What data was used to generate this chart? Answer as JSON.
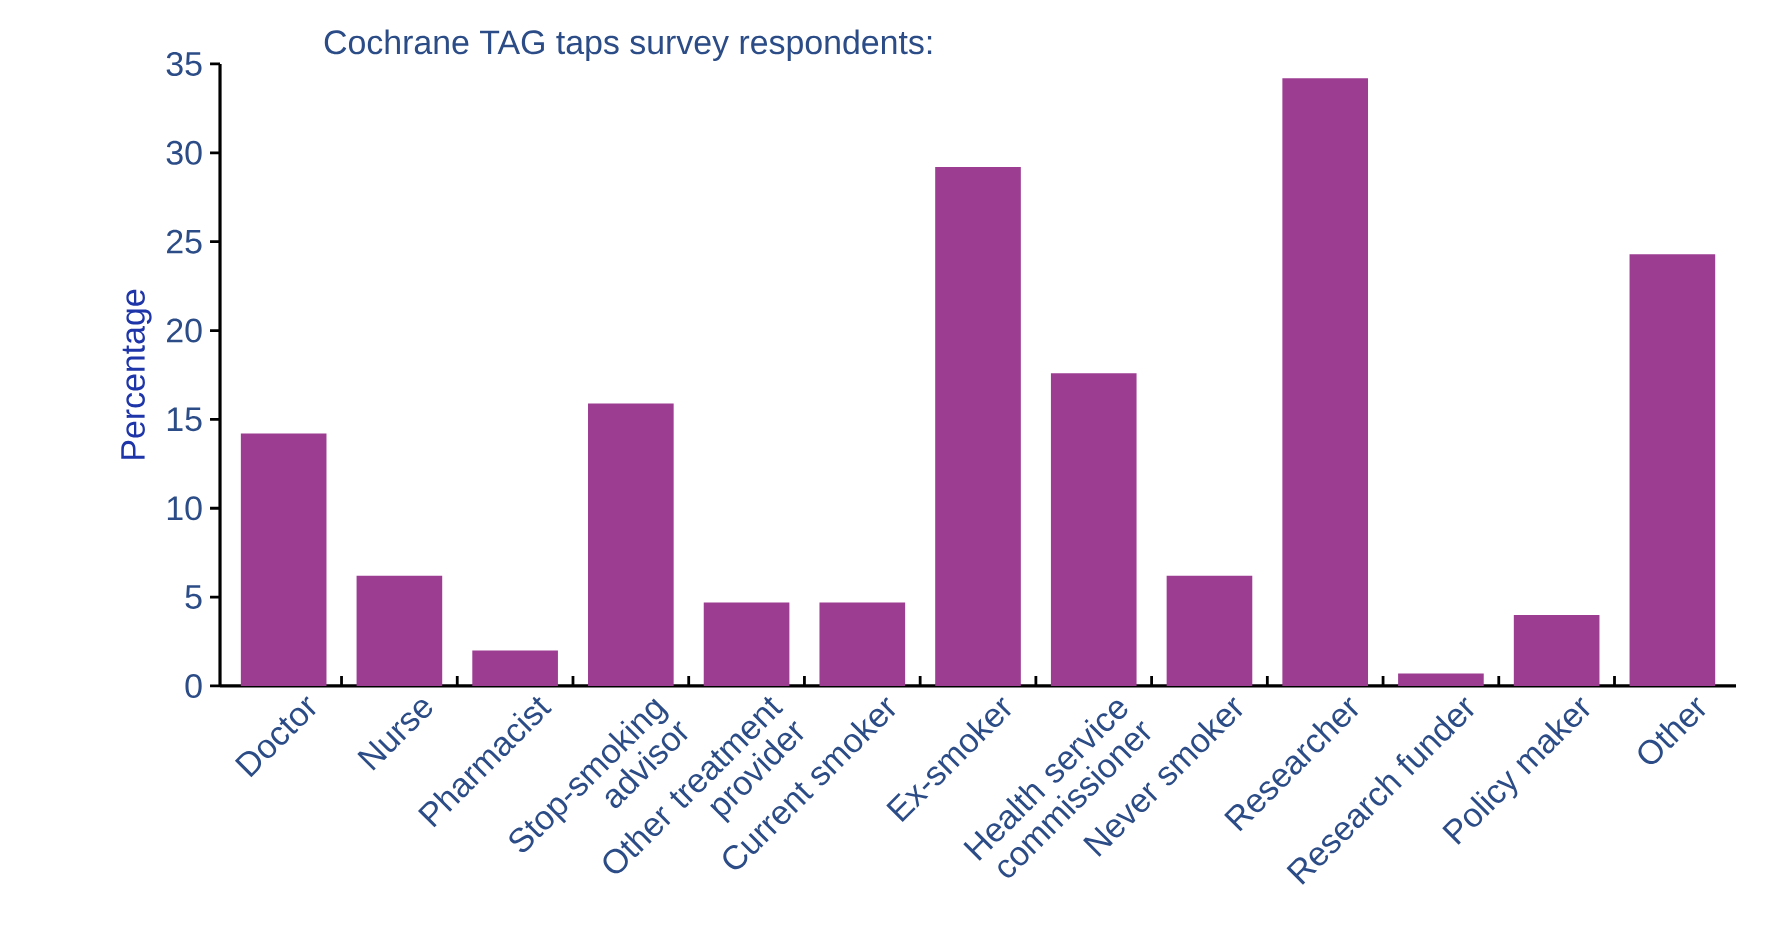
{
  "chart_data": {
    "type": "bar",
    "title": "Cochrane TAG taps survey respondents:",
    "ylabel": "Percentage",
    "categories": [
      "Doctor",
      "Nurse",
      "Pharmacist",
      "Stop-smoking advisor",
      "Other treatment provider",
      "Current smoker",
      "Ex-smoker",
      "Health service commissioner",
      "Never smoker",
      "Researcher",
      "Research funder",
      "Policy maker",
      "Other"
    ],
    "values": [
      14.2,
      6.2,
      2,
      15.9,
      4.7,
      4.7,
      29.2,
      17.6,
      6.2,
      34.2,
      0.7,
      4.0,
      24.3
    ],
    "color": "#9c3d92",
    "ylim": [
      0,
      35
    ],
    "yticks": [
      0,
      5,
      10,
      15,
      20,
      25,
      30,
      35
    ],
    "grid": false
  }
}
